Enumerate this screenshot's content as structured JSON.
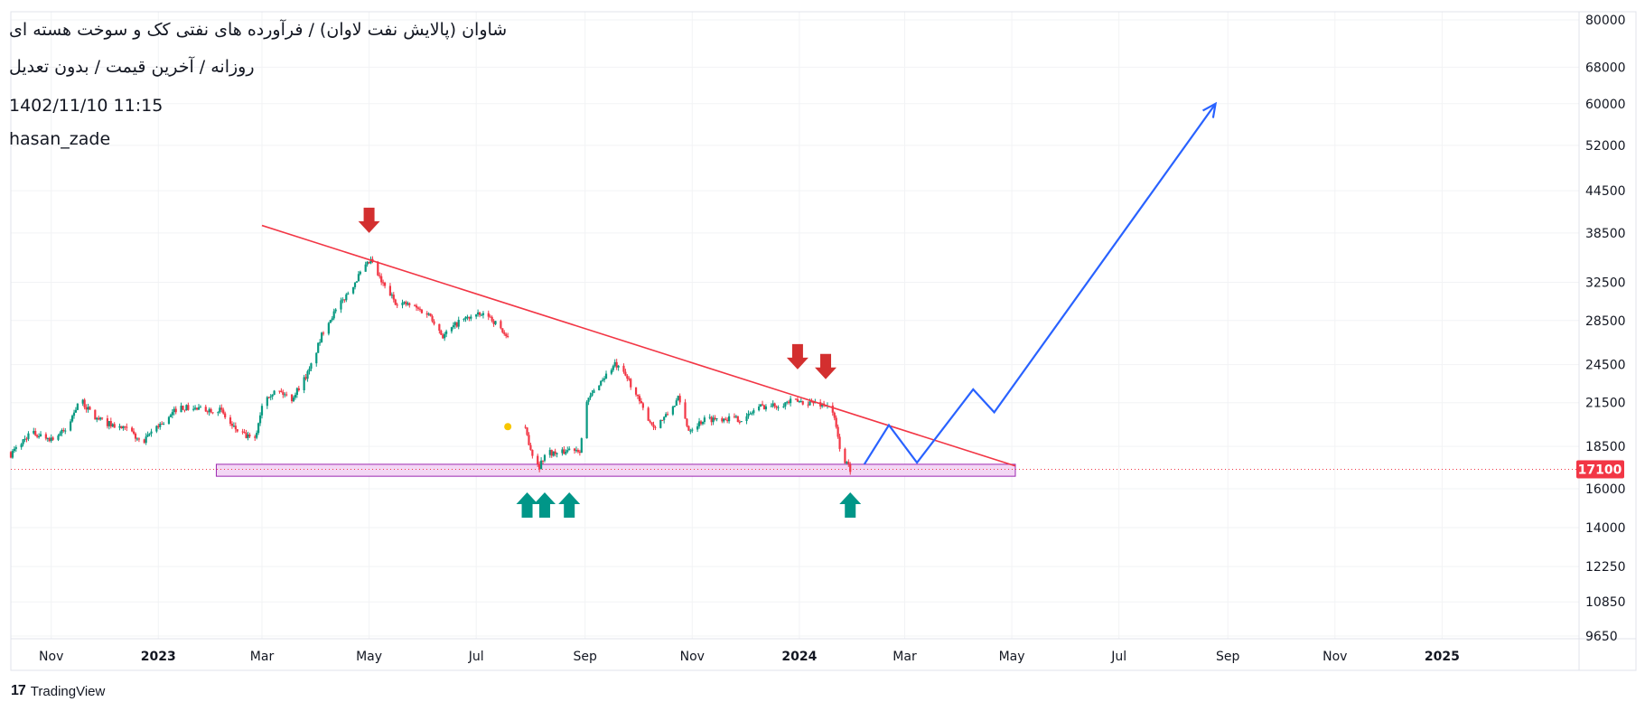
{
  "header": {
    "title": "شاوان (پالایش نفت لاوان) / فرآورده های نفتی کک و سوخت هسته ای",
    "subtitle": "روزانه / آخرین قیمت / بدون تعدیل",
    "datetime": "1402/11/10 11:15",
    "author": "hasan_zade"
  },
  "footer": {
    "brand_label": "TradingView",
    "brand_mark": "17"
  },
  "colors": {
    "up": "#089981",
    "down": "#f23645",
    "trendline": "#f23645",
    "projection": "#2962ff",
    "support_fill": "#f3d7f5",
    "support_stroke": "#9c27b0",
    "arrow_down": "#d32f2f",
    "arrow_up": "#009688",
    "price_tag": "#f23645",
    "dot": "#f7c600"
  },
  "chart_data": {
    "type": "candlestick",
    "scale": "log",
    "ylim": [
      9650,
      80000
    ],
    "y_ticks": [
      80000,
      68000,
      60000,
      52000,
      44500,
      38500,
      32500,
      28500,
      24500,
      21500,
      18500,
      16000,
      14000,
      12250,
      10850,
      9650
    ],
    "x_ticks": [
      {
        "label": "Nov",
        "date": "2022-11-01",
        "bold": false
      },
      {
        "label": "2023",
        "date": "2023-01-01",
        "bold": true
      },
      {
        "label": "Mar",
        "date": "2023-03-01",
        "bold": false
      },
      {
        "label": "May",
        "date": "2023-05-01",
        "bold": false
      },
      {
        "label": "Jul",
        "date": "2023-07-01",
        "bold": false
      },
      {
        "label": "Sep",
        "date": "2023-09-01",
        "bold": false
      },
      {
        "label": "Nov",
        "date": "2023-11-01",
        "bold": false
      },
      {
        "label": "2024",
        "date": "2024-01-01",
        "bold": true
      },
      {
        "label": "Mar",
        "date": "2024-03-01",
        "bold": false
      },
      {
        "label": "May",
        "date": "2024-05-01",
        "bold": false
      },
      {
        "label": "Jul",
        "date": "2024-07-01",
        "bold": false
      },
      {
        "label": "Sep",
        "date": "2024-09-01",
        "bold": false
      },
      {
        "label": "Nov",
        "date": "2024-11-01",
        "bold": false
      },
      {
        "label": "2025",
        "date": "2025-01-01",
        "bold": true
      }
    ],
    "x_range": [
      "2022-10-09",
      "2025-03-20"
    ],
    "last_price": 17100,
    "price_path": [
      [
        "2022-10-09",
        18000
      ],
      [
        "2022-10-20",
        19400
      ],
      [
        "2022-11-01",
        19000
      ],
      [
        "2022-11-10",
        19600
      ],
      [
        "2022-11-17",
        21800
      ],
      [
        "2022-11-26",
        20400
      ],
      [
        "2022-12-08",
        19800
      ],
      [
        "2022-12-16",
        19500
      ],
      [
        "2022-12-23",
        18600
      ],
      [
        "2022-12-30",
        19800
      ],
      [
        "2023-01-06",
        20200
      ],
      [
        "2023-01-12",
        21200
      ],
      [
        "2023-01-25",
        21000
      ],
      [
        "2023-02-05",
        21000
      ],
      [
        "2023-02-12",
        19800
      ],
      [
        "2023-02-19",
        19200
      ],
      [
        "2023-02-25",
        18900
      ],
      [
        "2023-03-02",
        22000
      ],
      [
        "2023-03-10",
        22400
      ],
      [
        "2023-03-18",
        21800
      ],
      [
        "2023-03-28",
        24000
      ],
      [
        "2023-04-06",
        28000
      ],
      [
        "2023-04-16",
        30500
      ],
      [
        "2023-04-26",
        33500
      ],
      [
        "2023-05-02",
        35000
      ],
      [
        "2023-05-08",
        32500
      ],
      [
        "2023-05-16",
        30400
      ],
      [
        "2023-05-25",
        30000
      ],
      [
        "2023-06-05",
        29000
      ],
      [
        "2023-06-12",
        27000
      ],
      [
        "2023-06-22",
        28500
      ],
      [
        "2023-06-30",
        29000
      ],
      [
        "2023-07-08",
        29000
      ],
      [
        "2023-07-16",
        27500
      ],
      [
        "2023-07-20",
        26500
      ],
      [
        "2023-07-29",
        19600
      ],
      [
        "2023-08-02",
        18000
      ],
      [
        "2023-08-06",
        17300
      ],
      [
        "2023-08-10",
        18200
      ],
      [
        "2023-08-17",
        18000
      ],
      [
        "2023-08-24",
        18400
      ],
      [
        "2023-08-29",
        18300
      ],
      [
        "2023-09-02",
        21500
      ],
      [
        "2023-09-09",
        23000
      ],
      [
        "2023-09-18",
        24500
      ],
      [
        "2023-09-26",
        23200
      ],
      [
        "2023-10-04",
        21000
      ],
      [
        "2023-10-10",
        19800
      ],
      [
        "2023-10-17",
        20500
      ],
      [
        "2023-10-24",
        21800
      ],
      [
        "2023-10-30",
        19600
      ],
      [
        "2023-11-08",
        20300
      ],
      [
        "2023-11-20",
        20400
      ],
      [
        "2023-12-01",
        20300
      ],
      [
        "2023-12-08",
        21200
      ],
      [
        "2023-12-18",
        21300
      ],
      [
        "2023-12-28",
        21600
      ],
      [
        "2024-01-08",
        21500
      ],
      [
        "2024-01-18",
        21300
      ],
      [
        "2024-01-21",
        20300
      ],
      [
        "2024-01-25",
        17900
      ],
      [
        "2024-01-30",
        17100
      ]
    ],
    "trendline": [
      [
        "2023-03-01",
        39500
      ],
      [
        "2024-05-03",
        17300
      ]
    ],
    "support_zone": {
      "from": "2023-02-03",
      "to": "2024-05-03",
      "low": 16700,
      "high": 17400
    },
    "projection": [
      [
        "2024-02-07",
        17400
      ],
      [
        "2024-02-21",
        19900
      ],
      [
        "2024-03-08",
        17500
      ],
      [
        "2024-04-09",
        22500
      ],
      [
        "2024-04-21",
        20800
      ],
      [
        "2024-08-25",
        60000
      ]
    ],
    "markers": [
      {
        "type": "arrow-down",
        "date": "2023-05-01",
        "price": 38500
      },
      {
        "type": "arrow-down",
        "date": "2023-12-31",
        "price": 24100
      },
      {
        "type": "arrow-down",
        "date": "2024-01-16",
        "price": 23300
      },
      {
        "type": "arrow-up",
        "date": "2023-07-30",
        "price": 15800
      },
      {
        "type": "arrow-up",
        "date": "2023-08-09",
        "price": 15800
      },
      {
        "type": "arrow-up",
        "date": "2023-08-23",
        "price": 15800
      },
      {
        "type": "arrow-up",
        "date": "2024-01-30",
        "price": 15800
      },
      {
        "type": "dot",
        "date": "2023-07-19",
        "price": 19800
      }
    ]
  }
}
